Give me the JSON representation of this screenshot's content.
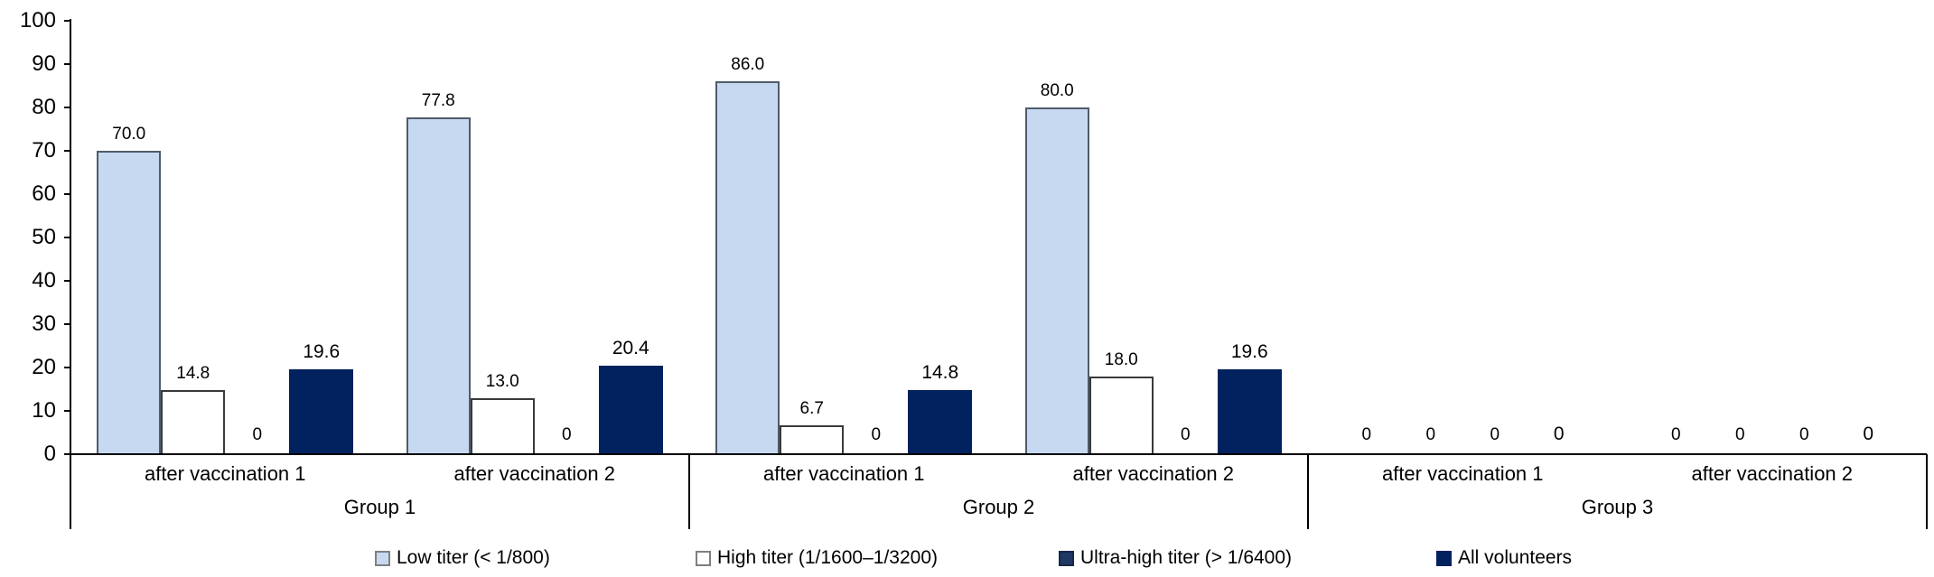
{
  "chart_data": {
    "type": "bar",
    "title": "",
    "xlabel": "",
    "ylabel": "",
    "ylim": [
      0,
      100
    ],
    "ytick_step": 10,
    "yticks": [
      "100",
      "90",
      "80",
      "70",
      "60",
      "50",
      "40",
      "30",
      "20",
      "10",
      "0"
    ],
    "grid": false,
    "legend_position": "bottom",
    "series": [
      {
        "name": "Low titer (< 1/800)",
        "color": "#c6d9f1",
        "border": "#4f5b6b"
      },
      {
        "name": "High titer (1/1600–1/3200)",
        "color": "#ffffff",
        "border": "#3a3a3a"
      },
      {
        "name": "Ultra-high titer (> 1/6400)",
        "color": "#1f3864",
        "border": "#16294a"
      },
      {
        "name": "All volunteers",
        "color": "#02215f",
        "border": "#02215f"
      }
    ],
    "groups": [
      {
        "label": "Group 1",
        "categories": [
          {
            "label": "after vaccination 1",
            "values": [
              70.0,
              14.8,
              0,
              19.6
            ],
            "labels": [
              "70.0",
              "14.8",
              "0",
              "19.6"
            ]
          },
          {
            "label": "after vaccination 2",
            "values": [
              77.8,
              13.0,
              0,
              20.4
            ],
            "labels": [
              "77.8",
              "13.0",
              "0",
              "20.4"
            ]
          }
        ]
      },
      {
        "label": "Group 2",
        "categories": [
          {
            "label": "after vaccination 1",
            "values": [
              86.0,
              6.7,
              0,
              14.8
            ],
            "labels": [
              "86.0",
              "6.7",
              "0",
              "14.8"
            ]
          },
          {
            "label": "after vaccination 2",
            "values": [
              80.0,
              18.0,
              0,
              19.6
            ],
            "labels": [
              "80.0",
              "18.0",
              "0",
              "19.6"
            ]
          }
        ]
      },
      {
        "label": "Group 3",
        "categories": [
          {
            "label": "after vaccination 1",
            "values": [
              0,
              0,
              0,
              0
            ],
            "labels": [
              "0",
              "0",
              "0",
              "0"
            ]
          },
          {
            "label": "after vaccination 2",
            "values": [
              0,
              0,
              0,
              0
            ],
            "labels": [
              "0",
              "0",
              "0",
              "0"
            ]
          }
        ]
      }
    ]
  }
}
